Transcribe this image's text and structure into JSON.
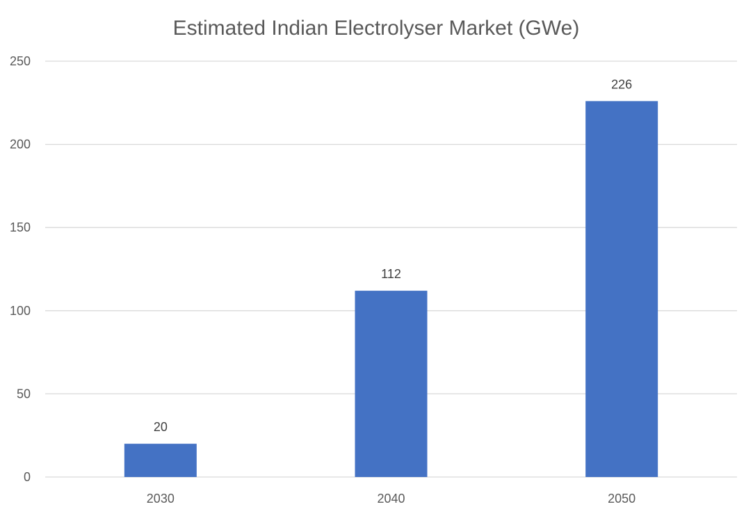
{
  "chart_data": {
    "type": "bar",
    "title": "Estimated Indian Electrolyser Market (GWe)",
    "categories": [
      "2030",
      "2040",
      "2050"
    ],
    "values": [
      20,
      112,
      226
    ],
    "data_labels": [
      "20",
      "112",
      "226"
    ],
    "xlabel": "",
    "ylabel": "",
    "ylim": [
      0,
      250
    ],
    "yticks": [
      0,
      50,
      100,
      150,
      200,
      250
    ],
    "grid": true,
    "legend": "none",
    "bar_color": "#4472C4",
    "grid_color": "#D9D9D9"
  }
}
